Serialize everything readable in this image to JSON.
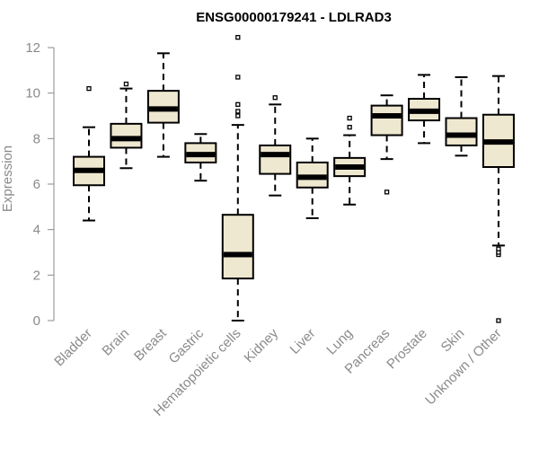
{
  "chart_data": {
    "type": "boxplot",
    "title": "ENSG00000179241 - LDLRAD3",
    "xlabel": "",
    "ylabel": "Expression",
    "ylim": [
      0,
      12.4
    ],
    "yticks": [
      0,
      2,
      4,
      6,
      8,
      10,
      12
    ],
    "ytick_labels": [
      "0",
      "2",
      "4",
      "6",
      "8",
      "10",
      "12"
    ],
    "grid": false,
    "box_fill": "#efe8d0",
    "box_stroke": "#000000",
    "categories": [
      "Bladder",
      "Brain",
      "Breast",
      "Gastric",
      "Hematopoietic cells",
      "Kidney",
      "Liver",
      "Lung",
      "Pancreas",
      "Prostate",
      "Skin",
      "Unknown / Other"
    ],
    "boxes": [
      {
        "category": "Bladder",
        "whisker_low": 4.4,
        "q1": 5.95,
        "median": 6.6,
        "q3": 7.2,
        "whisker_high": 8.5,
        "outliers": [
          10.2
        ]
      },
      {
        "category": "Brain",
        "whisker_low": 6.7,
        "q1": 7.6,
        "median": 8.0,
        "q3": 8.65,
        "whisker_high": 10.2,
        "outliers": [
          10.4
        ]
      },
      {
        "category": "Breast",
        "whisker_low": 7.2,
        "q1": 8.7,
        "median": 9.3,
        "q3": 10.1,
        "whisker_high": 11.75,
        "outliers": []
      },
      {
        "category": "Gastric",
        "whisker_low": 6.15,
        "q1": 6.95,
        "median": 7.3,
        "q3": 7.8,
        "whisker_high": 8.2,
        "outliers": []
      },
      {
        "category": "Hematopoietic cells",
        "whisker_low": 0.0,
        "q1": 1.85,
        "median": 2.9,
        "q3": 4.65,
        "whisker_high": 8.6,
        "outliers": [
          9.0,
          9.2,
          9.5,
          10.7,
          12.45
        ]
      },
      {
        "category": "Kidney",
        "whisker_low": 5.5,
        "q1": 6.45,
        "median": 7.3,
        "q3": 7.7,
        "whisker_high": 9.5,
        "outliers": [
          9.8
        ]
      },
      {
        "category": "Liver",
        "whisker_low": 4.5,
        "q1": 5.85,
        "median": 6.3,
        "q3": 6.95,
        "whisker_high": 8.0,
        "outliers": []
      },
      {
        "category": "Lung",
        "whisker_low": 5.1,
        "q1": 6.35,
        "median": 6.75,
        "q3": 7.15,
        "whisker_high": 8.15,
        "outliers": [
          8.5,
          8.9
        ]
      },
      {
        "category": "Pancreas",
        "whisker_low": 7.1,
        "q1": 8.15,
        "median": 9.0,
        "q3": 9.45,
        "whisker_high": 9.9,
        "outliers": [
          5.65
        ]
      },
      {
        "category": "Prostate",
        "whisker_low": 7.8,
        "q1": 8.8,
        "median": 9.2,
        "q3": 9.75,
        "whisker_high": 10.8,
        "outliers": []
      },
      {
        "category": "Skin",
        "whisker_low": 7.25,
        "q1": 7.7,
        "median": 8.15,
        "q3": 8.9,
        "whisker_high": 10.7,
        "outliers": []
      },
      {
        "category": "Unknown / Other",
        "whisker_low": 3.3,
        "q1": 6.75,
        "median": 7.85,
        "q3": 9.05,
        "whisker_high": 10.75,
        "outliers": [
          0.0,
          2.9,
          3.0,
          3.15
        ]
      }
    ]
  }
}
